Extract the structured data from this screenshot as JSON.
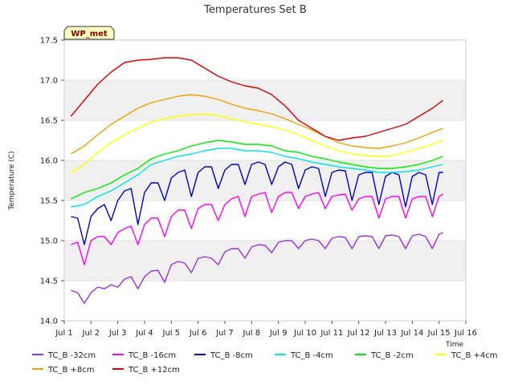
{
  "chart_data": {
    "type": "line",
    "title": "Temperatures Set B",
    "xlabel": "Time",
    "ylabel": "Temperature (C)",
    "badge": "WP_met",
    "xlim": [
      1,
      16
    ],
    "ylim": [
      14.0,
      17.5
    ],
    "x_ticks": [
      {
        "value": 1,
        "label": "Jul 1"
      },
      {
        "value": 2,
        "label": "Jul 2"
      },
      {
        "value": 3,
        "label": "Jul 3"
      },
      {
        "value": 4,
        "label": "Jul 4"
      },
      {
        "value": 5,
        "label": "Jul 5"
      },
      {
        "value": 6,
        "label": "Jul 6"
      },
      {
        "value": 7,
        "label": "Jul 7"
      },
      {
        "value": 8,
        "label": "Jul 8"
      },
      {
        "value": 9,
        "label": "Jul 9"
      },
      {
        "value": 10,
        "label": "Jul 10"
      },
      {
        "value": 11,
        "label": "Jul 11"
      },
      {
        "value": 12,
        "label": "Jul 12"
      },
      {
        "value": 13,
        "label": "Jul 13"
      },
      {
        "value": 14,
        "label": "Jul 14"
      },
      {
        "value": 15,
        "label": "Jul 15"
      },
      {
        "value": 16,
        "label": "Jul 16"
      }
    ],
    "y_ticks": [
      {
        "value": 14.0,
        "label": "14.0"
      },
      {
        "value": 14.5,
        "label": "14.5"
      },
      {
        "value": 15.0,
        "label": "15.0"
      },
      {
        "value": 15.5,
        "label": "15.5"
      },
      {
        "value": 16.0,
        "label": "16.0"
      },
      {
        "value": 16.5,
        "label": "16.5"
      },
      {
        "value": 17.0,
        "label": "17.0"
      },
      {
        "value": 17.5,
        "label": "17.5"
      }
    ],
    "grid": "horizontal bands",
    "legend_position": "bottom",
    "series": [
      {
        "name": "TC_B -32cm",
        "color": "#9b30e8",
        "x": [
          1.25,
          1.5,
          1.75,
          2,
          2.25,
          2.5,
          2.75,
          3,
          3.25,
          3.5,
          3.75,
          4,
          4.25,
          4.5,
          4.75,
          5,
          5.25,
          5.5,
          5.75,
          6,
          6.25,
          6.5,
          6.75,
          7,
          7.25,
          7.5,
          7.75,
          8,
          8.25,
          8.5,
          8.75,
          9,
          9.25,
          9.5,
          9.75,
          10,
          10.25,
          10.5,
          10.75,
          11,
          11.25,
          11.5,
          11.75,
          12,
          12.25,
          12.5,
          12.75,
          13,
          13.25,
          13.5,
          13.75,
          14,
          14.25,
          14.5,
          14.75,
          15,
          15.15
        ],
        "y": [
          14.38,
          14.35,
          14.22,
          14.35,
          14.42,
          14.4,
          14.45,
          14.42,
          14.52,
          14.55,
          14.4,
          14.55,
          14.62,
          14.63,
          14.48,
          14.7,
          14.74,
          14.72,
          14.6,
          14.78,
          14.8,
          14.78,
          14.7,
          14.86,
          14.9,
          14.9,
          14.78,
          14.92,
          14.95,
          14.94,
          14.85,
          14.98,
          15.0,
          15.0,
          14.9,
          15.0,
          15.02,
          15.0,
          14.9,
          15.03,
          15.05,
          15.04,
          14.9,
          15.05,
          15.06,
          15.05,
          14.9,
          15.06,
          15.07,
          15.05,
          14.9,
          15.06,
          15.08,
          15.05,
          14.9,
          15.08,
          15.1
        ]
      },
      {
        "name": "TC_B -16cm",
        "color": "#ff00ff",
        "x": [
          1.25,
          1.5,
          1.75,
          2,
          2.25,
          2.5,
          2.75,
          3,
          3.25,
          3.5,
          3.75,
          4,
          4.25,
          4.5,
          4.75,
          5,
          5.25,
          5.5,
          5.75,
          6,
          6.25,
          6.5,
          6.75,
          7,
          7.25,
          7.5,
          7.75,
          8,
          8.25,
          8.5,
          8.75,
          9,
          9.25,
          9.5,
          9.75,
          10,
          10.25,
          10.5,
          10.75,
          11,
          11.25,
          11.5,
          11.75,
          12,
          12.25,
          12.5,
          12.75,
          13,
          13.25,
          13.5,
          13.75,
          14,
          14.25,
          14.5,
          14.75,
          15,
          15.15
        ],
        "y": [
          14.95,
          14.98,
          14.7,
          15.0,
          15.05,
          15.05,
          14.95,
          15.1,
          15.15,
          15.18,
          14.95,
          15.2,
          15.28,
          15.28,
          15.05,
          15.3,
          15.38,
          15.38,
          15.15,
          15.4,
          15.45,
          15.45,
          15.25,
          15.45,
          15.52,
          15.55,
          15.3,
          15.55,
          15.58,
          15.6,
          15.35,
          15.55,
          15.6,
          15.6,
          15.4,
          15.55,
          15.58,
          15.6,
          15.4,
          15.55,
          15.57,
          15.58,
          15.38,
          15.52,
          15.55,
          15.55,
          15.28,
          15.52,
          15.55,
          15.55,
          15.28,
          15.52,
          15.55,
          15.55,
          15.3,
          15.55,
          15.58
        ]
      },
      {
        "name": "TC_B -8cm",
        "color": "#0000cc",
        "x": [
          1.25,
          1.5,
          1.75,
          2,
          2.25,
          2.5,
          2.75,
          3,
          3.25,
          3.5,
          3.75,
          4,
          4.25,
          4.5,
          4.75,
          5,
          5.25,
          5.5,
          5.75,
          6,
          6.25,
          6.5,
          6.75,
          7,
          7.25,
          7.5,
          7.75,
          8,
          8.25,
          8.5,
          8.75,
          9,
          9.25,
          9.5,
          9.75,
          10,
          10.25,
          10.5,
          10.75,
          11,
          11.25,
          11.5,
          11.75,
          12,
          12.25,
          12.5,
          12.75,
          13,
          13.25,
          13.5,
          13.75,
          14,
          14.25,
          14.5,
          14.75,
          15,
          15.15
        ],
        "y": [
          15.3,
          15.28,
          14.95,
          15.3,
          15.4,
          15.45,
          15.25,
          15.5,
          15.62,
          15.65,
          15.2,
          15.6,
          15.72,
          15.72,
          15.5,
          15.78,
          15.85,
          15.88,
          15.55,
          15.85,
          15.92,
          15.92,
          15.65,
          15.88,
          15.95,
          15.95,
          15.7,
          15.95,
          15.98,
          15.95,
          15.7,
          15.92,
          15.98,
          15.95,
          15.65,
          15.88,
          15.92,
          15.9,
          15.55,
          15.85,
          15.88,
          15.87,
          15.5,
          15.82,
          15.85,
          15.85,
          15.45,
          15.8,
          15.85,
          15.82,
          15.42,
          15.8,
          15.85,
          15.82,
          15.45,
          15.85,
          15.85
        ]
      },
      {
        "name": "TC_B -4cm",
        "color": "#00e5e5",
        "x": [
          1.25,
          1.75,
          2.25,
          2.75,
          3.25,
          3.75,
          4.25,
          4.75,
          5.25,
          5.75,
          6.25,
          6.75,
          7.25,
          7.75,
          8.25,
          8.75,
          9.25,
          9.75,
          10.25,
          10.75,
          11.25,
          11.75,
          12.25,
          12.75,
          13.25,
          13.75,
          14.25,
          14.75,
          15.15
        ],
        "y": [
          15.42,
          15.45,
          15.55,
          15.62,
          15.72,
          15.82,
          15.95,
          16.0,
          16.05,
          16.08,
          16.12,
          16.15,
          16.15,
          16.12,
          16.12,
          16.1,
          16.05,
          16.02,
          15.98,
          15.95,
          15.92,
          15.9,
          15.88,
          15.85,
          15.85,
          15.86,
          15.88,
          15.92,
          15.95
        ]
      },
      {
        "name": "TC_B -2cm",
        "color": "#00ee00",
        "x": [
          1.25,
          1.75,
          2.25,
          2.75,
          3.25,
          3.75,
          4.25,
          4.75,
          5.25,
          5.75,
          6.25,
          6.75,
          7.25,
          7.75,
          8.25,
          8.75,
          9.25,
          9.75,
          10.25,
          10.75,
          11.25,
          11.75,
          12.25,
          12.75,
          13.25,
          13.75,
          14.25,
          14.75,
          15.15
        ],
        "y": [
          15.52,
          15.6,
          15.65,
          15.72,
          15.82,
          15.9,
          16.02,
          16.08,
          16.12,
          16.18,
          16.22,
          16.25,
          16.23,
          16.2,
          16.2,
          16.18,
          16.12,
          16.1,
          16.05,
          16.02,
          15.98,
          15.95,
          15.92,
          15.9,
          15.9,
          15.92,
          15.95,
          16.0,
          16.05
        ]
      },
      {
        "name": "TC_B +4cm",
        "color": "#ffff00",
        "x": [
          1.25,
          1.75,
          2.25,
          2.75,
          3.25,
          3.75,
          4.25,
          4.75,
          5.25,
          5.75,
          6.25,
          6.75,
          7.25,
          7.75,
          8.25,
          8.75,
          9.25,
          9.75,
          10.25,
          10.75,
          11.25,
          11.75,
          12.25,
          12.75,
          13.25,
          13.75,
          14.25,
          14.75,
          15.15
        ],
        "y": [
          15.85,
          15.95,
          16.1,
          16.22,
          16.32,
          16.4,
          16.48,
          16.52,
          16.55,
          16.57,
          16.58,
          16.56,
          16.52,
          16.48,
          16.45,
          16.42,
          16.38,
          16.32,
          16.25,
          16.18,
          16.12,
          16.08,
          16.06,
          16.05,
          16.06,
          16.1,
          16.15,
          16.2,
          16.25
        ]
      },
      {
        "name": "TC_B +8cm",
        "color": "#f0a000",
        "x": [
          1.25,
          1.75,
          2.25,
          2.75,
          3.25,
          3.75,
          4.25,
          4.75,
          5.25,
          5.75,
          6.25,
          6.75,
          7.25,
          7.75,
          8.25,
          8.75,
          9.25,
          9.75,
          10.25,
          10.75,
          11.25,
          11.75,
          12.25,
          12.75,
          13.25,
          13.75,
          14.25,
          14.75,
          15.15
        ],
        "y": [
          16.08,
          16.18,
          16.32,
          16.45,
          16.55,
          16.65,
          16.72,
          16.76,
          16.8,
          16.82,
          16.8,
          16.76,
          16.7,
          16.65,
          16.62,
          16.58,
          16.52,
          16.45,
          16.38,
          16.3,
          16.22,
          16.18,
          16.16,
          16.15,
          16.18,
          16.22,
          16.28,
          16.35,
          16.4
        ]
      },
      {
        "name": "TC_B +12cm",
        "color": "#dd0000",
        "x": [
          1.25,
          1.75,
          2.25,
          2.75,
          3.25,
          3.75,
          4.25,
          4.75,
          5.25,
          5.75,
          6.25,
          6.75,
          7.25,
          7.75,
          8.25,
          8.75,
          9.25,
          9.75,
          10.25,
          10.75,
          11.25,
          11.75,
          12.25,
          12.75,
          13.25,
          13.75,
          14.25,
          14.75,
          15.15
        ],
        "y": [
          16.55,
          16.75,
          16.95,
          17.1,
          17.22,
          17.25,
          17.26,
          17.28,
          17.28,
          17.25,
          17.15,
          17.05,
          16.98,
          16.93,
          16.9,
          16.82,
          16.68,
          16.5,
          16.4,
          16.3,
          16.25,
          16.28,
          16.3,
          16.35,
          16.4,
          16.45,
          16.55,
          16.65,
          16.75
        ]
      }
    ]
  }
}
